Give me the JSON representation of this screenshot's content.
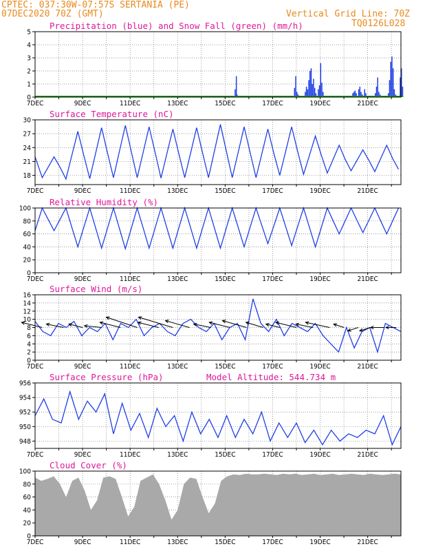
{
  "header": {
    "line1": "CPTEC:   037:30W-07:57S   SERTANIA (PE)",
    "line2_left": "07DEC2020 70Z (GMT)",
    "line2_right": "Vertical Grid Line: 70Z",
    "line3_right": "TQ0126L028"
  },
  "colors": {
    "header": "#e8891c",
    "title": "#e0169a",
    "line": "#1f3fe6",
    "snow": "#1a9a1a",
    "cloud": "#a9a9a9",
    "arrow": "#000000"
  },
  "chart_data": [
    {
      "type": "bar",
      "title": "Precipitation (blue) and Snow Fall (green) (mm/h)",
      "x_ticks": [
        "7DEC",
        "9DEC",
        "11DEC",
        "13DEC",
        "15DEC",
        "17DEC",
        "19DEC",
        "21DEC"
      ],
      "ylim": [
        0,
        5
      ],
      "y_ticks": [
        0,
        1,
        2,
        3,
        4,
        5
      ],
      "grid": true,
      "series": [
        {
          "name": "precipitation",
          "x": [
            8.05,
            8.4,
            8.45,
            8.48,
            8.52,
            8.55,
            8.6,
            10.85,
            10.9,
            10.95,
            11.0,
            11.05,
            11.1,
            11.15,
            11.35,
            11.4,
            11.45,
            11.5,
            11.55,
            11.6,
            11.65,
            11.7,
            11.75,
            11.8,
            11.85,
            11.9,
            11.95,
            12.0,
            12.05,
            12.1,
            13.35,
            13.4,
            13.45,
            13.5,
            13.6,
            13.65,
            13.7,
            13.75,
            13.8,
            13.85,
            13.9,
            14.3,
            14.35,
            14.4,
            14.45,
            14.5,
            14.85,
            14.9,
            14.95,
            15.0,
            15.05,
            15.1,
            15.15,
            15.3,
            15.35,
            15.4,
            15.45
          ],
          "values": [
            0.1,
            0.6,
            1.6,
            0.2,
            0.1,
            0.05,
            0.1,
            0.1,
            0.7,
            1.6,
            0.4,
            0.2,
            0.1,
            0.05,
            0.4,
            0.8,
            0.6,
            1.3,
            2.0,
            2.2,
            1.0,
            1.4,
            0.7,
            0.3,
            0.1,
            0.6,
            0.9,
            2.6,
            1.1,
            0.4,
            0.3,
            0.4,
            0.5,
            0.3,
            0.6,
            0.8,
            0.4,
            0.2,
            0.1,
            0.6,
            0.3,
            0.3,
            0.8,
            1.5,
            0.4,
            0.2,
            0.3,
            1.3,
            2.7,
            3.1,
            2.2,
            0.6,
            0.2,
            0.1,
            1.5,
            2.2,
            0.8
          ]
        },
        {
          "name": "snow",
          "x": [
            0,
            15.5
          ],
          "values": [
            0.05,
            0.05
          ]
        }
      ]
    },
    {
      "type": "line",
      "title": "Surface Temperature (nC)",
      "x_ticks": [
        "7DEC",
        "9DEC",
        "11DEC",
        "13DEC",
        "15DEC",
        "17DEC",
        "19DEC",
        "21DEC"
      ],
      "ylim": [
        16,
        30
      ],
      "y_ticks": [
        18,
        21,
        24,
        27,
        30
      ],
      "grid": true,
      "series": [
        {
          "name": "temperature",
          "min": [
            17.5,
            17.2,
            17.3,
            17.5,
            17.5,
            17.4,
            17.5,
            17.5,
            17.5,
            17.5,
            18.0,
            18.2,
            18.5,
            19.0,
            18.8,
            19.3
          ],
          "max": [
            22.0,
            27.5,
            28.3,
            28.8,
            28.5,
            28.0,
            28.3,
            29.0,
            28.5,
            28.0,
            28.5,
            26.5,
            24.5,
            23.5,
            24.5,
            25.5
          ]
        }
      ]
    },
    {
      "type": "line",
      "title": "Relative Humidity (%)",
      "x_ticks": [
        "7DEC",
        "9DEC",
        "11DEC",
        "13DEC",
        "15DEC",
        "17DEC",
        "19DEC",
        "21DEC"
      ],
      "ylim": [
        0,
        100
      ],
      "y_ticks": [
        0,
        20,
        40,
        60,
        80,
        100
      ],
      "grid": true,
      "series": [
        {
          "name": "humidity",
          "max": [
            100,
            100,
            100,
            100,
            100,
            100,
            100,
            100,
            100,
            100,
            100,
            100,
            100,
            100,
            100,
            100
          ],
          "min": [
            65,
            40,
            38,
            37,
            38,
            38,
            38,
            38,
            40,
            45,
            42,
            40,
            60,
            62,
            60,
            60
          ]
        }
      ]
    },
    {
      "type": "line",
      "title": "Surface Wind (m/s)",
      "x_ticks": [
        "7DEC",
        "9DEC",
        "11DEC",
        "13DEC",
        "15DEC",
        "17DEC",
        "19DEC",
        "21DEC"
      ],
      "ylim": [
        0,
        16
      ],
      "y_ticks": [
        0,
        2,
        4,
        6,
        8,
        10,
        12,
        14,
        16
      ],
      "grid": true,
      "series": [
        {
          "name": "wind speed",
          "values": [
            9.5,
            7,
            6,
            9,
            8,
            9.5,
            6,
            8,
            7,
            9,
            5,
            9,
            8,
            10,
            6,
            8,
            9,
            7,
            6,
            9,
            10,
            8,
            7,
            9,
            5,
            8,
            9,
            5,
            15,
            9,
            7,
            10,
            6,
            9,
            8,
            7,
            9,
            6,
            4,
            2,
            8,
            3,
            7,
            8,
            2,
            9,
            8,
            7
          ]
        }
      ]
    },
    {
      "type": "line",
      "title": "Surface Pressure (hPa)",
      "annotation": "Model Altitude: 544.734  m",
      "x_ticks": [
        "7DEC",
        "9DEC",
        "11DEC",
        "13DEC",
        "15DEC",
        "17DEC",
        "19DEC",
        "21DEC"
      ],
      "ylim": [
        947,
        956
      ],
      "y_ticks": [
        948,
        950,
        952,
        954,
        956
      ],
      "grid": true,
      "series": [
        {
          "name": "pressure",
          "values": [
            951.5,
            953.8,
            951,
            950.5,
            954.8,
            951,
            953.5,
            952,
            954.5,
            949,
            953.2,
            949.5,
            951.8,
            948.5,
            952.5,
            950,
            951.5,
            948,
            952,
            949,
            951,
            948.5,
            951.5,
            948.5,
            951,
            949,
            952,
            948,
            950.5,
            948.5,
            950.5,
            947.8,
            949.5,
            947.5,
            949.5,
            948,
            949,
            948.5,
            949.5,
            949,
            951.5,
            947.5,
            950
          ]
        }
      ]
    },
    {
      "type": "area",
      "title": "Cloud Cover (%)",
      "x_ticks": [
        "7DEC",
        "9DEC",
        "11DEC",
        "13DEC",
        "15DEC",
        "17DEC",
        "19DEC",
        "21DEC"
      ],
      "ylim": [
        0,
        100
      ],
      "y_ticks": [
        0,
        20,
        40,
        60,
        80,
        100
      ],
      "grid": true,
      "series": [
        {
          "name": "cloud cover",
          "values": [
            90,
            85,
            88,
            92,
            80,
            60,
            85,
            90,
            70,
            40,
            55,
            90,
            92,
            88,
            60,
            30,
            45,
            85,
            90,
            95,
            80,
            55,
            25,
            40,
            80,
            90,
            88,
            60,
            35,
            50,
            85,
            92,
            95,
            94,
            96,
            95,
            95,
            96,
            95,
            94,
            96,
            95,
            96,
            94,
            95,
            96,
            94,
            95,
            96,
            94,
            95,
            96,
            95,
            94,
            96,
            95,
            94,
            95,
            96,
            95
          ]
        }
      ]
    }
  ]
}
